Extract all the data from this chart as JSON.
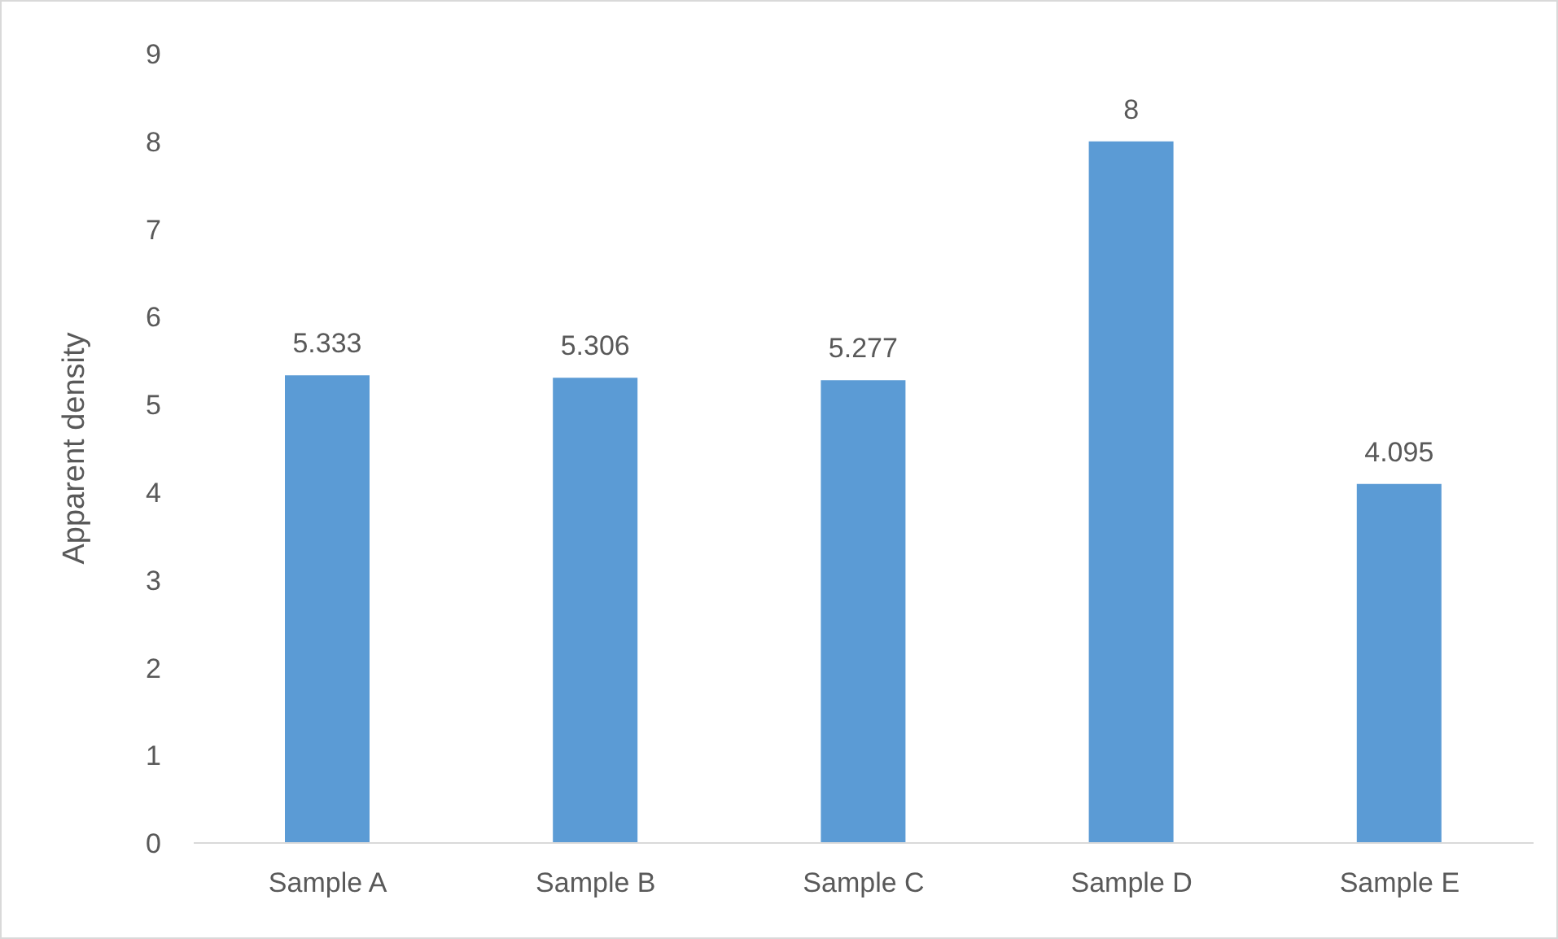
{
  "chart_data": {
    "type": "bar",
    "ylabel": "Apparent density",
    "categories": [
      "Sample A",
      "Sample B",
      "Sample C",
      "Sample D",
      "Sample E"
    ],
    "values": [
      5.333,
      5.306,
      5.277,
      8,
      4.095
    ],
    "color": "#5b9bd5",
    "ylim": [
      0,
      9
    ],
    "yticks": [
      0,
      1,
      2,
      3,
      4,
      5,
      6,
      7,
      8,
      9
    ],
    "grid": false,
    "data_labels": true
  }
}
